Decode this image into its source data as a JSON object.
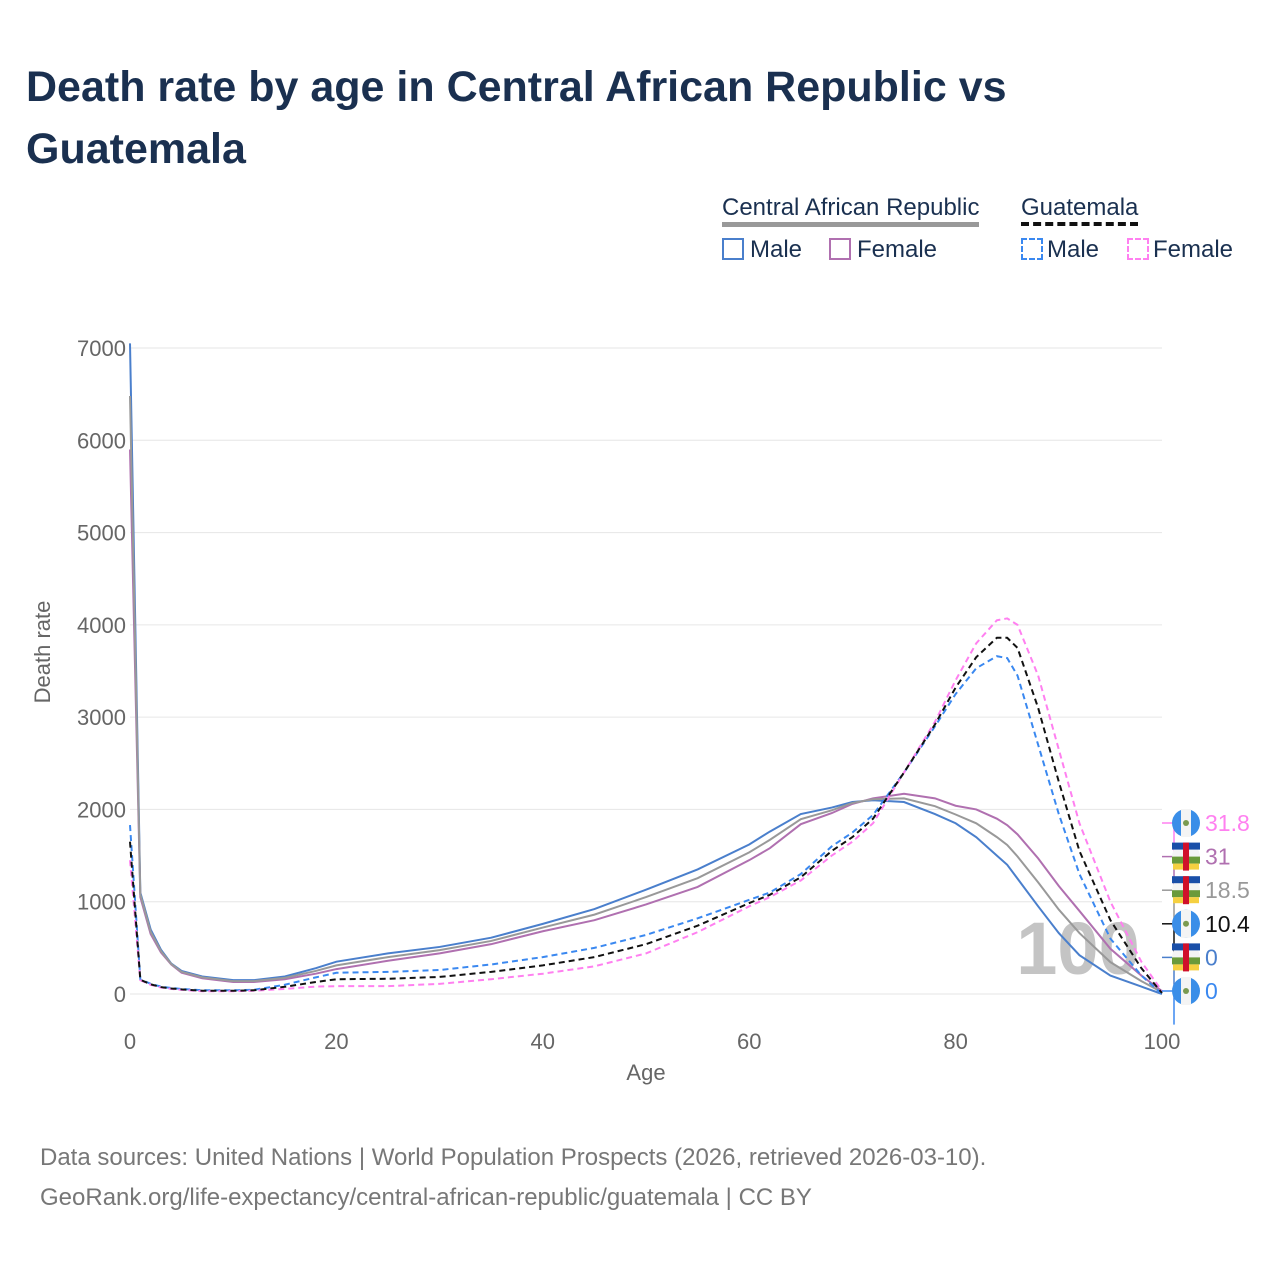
{
  "title": "Death rate by age in Central African Republic vs Guatemala",
  "legend": {
    "group1": "Central African Republic",
    "group2": "Guatemala",
    "male": "Male",
    "female": "Female"
  },
  "source": {
    "line1": "Data sources: United Nations | World Population Prospects (2026, retrieved 2026-03-10).",
    "line2": "GeoRank.org/life-expectancy/central-african-republic/guatemala | CC BY"
  },
  "chart_data": {
    "type": "line",
    "xlabel": "Age",
    "ylabel": "Death rate",
    "xlim": [
      0,
      100
    ],
    "ylim": [
      0,
      7000
    ],
    "xticks": [
      "0",
      "20",
      "40",
      "60",
      "80",
      "100"
    ],
    "yticks": [
      "0",
      "1000",
      "2000",
      "3000",
      "4000",
      "5000",
      "6000",
      "7000"
    ],
    "watermark": "100",
    "x": [
      0,
      1,
      2,
      3,
      4,
      5,
      7,
      10,
      12,
      15,
      18,
      20,
      25,
      30,
      35,
      40,
      45,
      50,
      55,
      60,
      62,
      65,
      68,
      70,
      72,
      75,
      78,
      80,
      82,
      84,
      85,
      86,
      88,
      90,
      92,
      95,
      98,
      100
    ],
    "series": [
      {
        "name": "Central African Republic Male",
        "color": "#4a7fcc",
        "dash": false,
        "end_label": "0",
        "flag": "caf",
        "values": [
          7050,
          1100,
          700,
          480,
          330,
          250,
          190,
          150,
          150,
          190,
          280,
          350,
          440,
          510,
          610,
          760,
          920,
          1130,
          1350,
          1620,
          1760,
          1950,
          2020,
          2080,
          2100,
          2080,
          1950,
          1850,
          1700,
          1500,
          1400,
          1250,
          950,
          660,
          420,
          200,
          80,
          0
        ]
      },
      {
        "name": "Central African Republic Female",
        "color": "#b070b0",
        "dash": false,
        "end_label": "31",
        "flag": "caf",
        "values": [
          5900,
          1050,
          650,
          450,
          320,
          230,
          170,
          130,
          130,
          160,
          220,
          270,
          360,
          440,
          540,
          680,
          800,
          970,
          1160,
          1450,
          1580,
          1840,
          1960,
          2060,
          2120,
          2170,
          2120,
          2040,
          2000,
          1900,
          1830,
          1730,
          1470,
          1170,
          900,
          490,
          200,
          31
        ]
      },
      {
        "name": "Central African Republic Total",
        "color": "#999999",
        "dash": false,
        "end_label": "18.5",
        "flag": "caf",
        "values": [
          6480,
          1080,
          675,
          465,
          325,
          240,
          180,
          140,
          140,
          175,
          250,
          310,
          400,
          475,
          575,
          720,
          860,
          1050,
          1255,
          1535,
          1670,
          1895,
          1990,
          2070,
          2110,
          2120,
          2035,
          1945,
          1850,
          1700,
          1615,
          1490,
          1210,
          915,
          660,
          345,
          140,
          18.5
        ]
      },
      {
        "name": "Guatemala Male",
        "color": "#3a88f0",
        "dash": true,
        "end_label": "0",
        "flag": "gt",
        "values": [
          1830,
          160,
          110,
          80,
          65,
          55,
          40,
          40,
          45,
          100,
          180,
          230,
          240,
          260,
          320,
          400,
          500,
          640,
          820,
          1020,
          1100,
          1300,
          1600,
          1750,
          1940,
          2400,
          2900,
          3250,
          3530,
          3660,
          3640,
          3450,
          2700,
          1950,
          1300,
          600,
          200,
          0
        ]
      },
      {
        "name": "Guatemala Female",
        "color": "#ff80f0",
        "dash": true,
        "end_label": "31.8",
        "flag": "gt",
        "values": [
          1450,
          150,
          100,
          70,
          55,
          45,
          30,
          30,
          35,
          55,
          80,
          85,
          85,
          110,
          160,
          220,
          300,
          440,
          670,
          950,
          1050,
          1230,
          1500,
          1650,
          1850,
          2400,
          2950,
          3400,
          3800,
          4050,
          4070,
          4000,
          3450,
          2650,
          1850,
          1000,
          350,
          31.8
        ]
      },
      {
        "name": "Guatemala Total",
        "color": "#111111",
        "dash": true,
        "end_label": "10.4",
        "flag": "gt",
        "values": [
          1650,
          155,
          105,
          75,
          60,
          50,
          35,
          35,
          40,
          78,
          130,
          160,
          165,
          185,
          240,
          310,
          400,
          540,
          740,
          985,
          1075,
          1265,
          1550,
          1700,
          1900,
          2400,
          2920,
          3320,
          3650,
          3860,
          3860,
          3750,
          3100,
          2300,
          1550,
          800,
          280,
          10.4
        ]
      }
    ],
    "end_label_order": [
      4,
      1,
      2,
      5,
      0,
      3
    ]
  }
}
